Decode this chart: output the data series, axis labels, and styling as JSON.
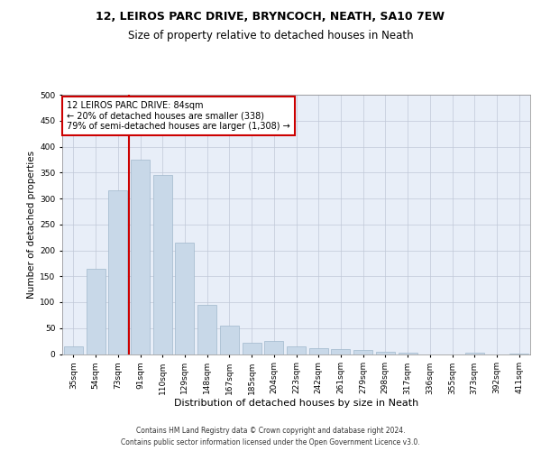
{
  "title": "12, LEIROS PARC DRIVE, BRYNCOCH, NEATH, SA10 7EW",
  "subtitle": "Size of property relative to detached houses in Neath",
  "xlabel": "Distribution of detached houses by size in Neath",
  "ylabel": "Number of detached properties",
  "categories": [
    "35sqm",
    "54sqm",
    "73sqm",
    "91sqm",
    "110sqm",
    "129sqm",
    "148sqm",
    "167sqm",
    "185sqm",
    "204sqm",
    "223sqm",
    "242sqm",
    "261sqm",
    "279sqm",
    "298sqm",
    "317sqm",
    "336sqm",
    "355sqm",
    "373sqm",
    "392sqm",
    "411sqm"
  ],
  "values": [
    15,
    165,
    315,
    375,
    345,
    215,
    95,
    55,
    22,
    25,
    15,
    12,
    10,
    8,
    5,
    2,
    0,
    0,
    2,
    0,
    1
  ],
  "bar_color": "#c8d8e8",
  "bar_edgecolor": "#a0b8cc",
  "vline_color": "#cc0000",
  "annotation_text": "12 LEIROS PARC DRIVE: 84sqm\n← 20% of detached houses are smaller (338)\n79% of semi-detached houses are larger (1,308) →",
  "annotation_box_color": "#cc0000",
  "annotation_fill": "white",
  "ylim": [
    0,
    500
  ],
  "yticks": [
    0,
    50,
    100,
    150,
    200,
    250,
    300,
    350,
    400,
    450,
    500
  ],
  "grid_color": "#c0c8d8",
  "background_color": "#e8eef8",
  "footer_line1": "Contains HM Land Registry data © Crown copyright and database right 2024.",
  "footer_line2": "Contains public sector information licensed under the Open Government Licence v3.0.",
  "title_fontsize": 9,
  "subtitle_fontsize": 8.5,
  "xlabel_fontsize": 8,
  "ylabel_fontsize": 7.5,
  "annotation_fontsize": 7,
  "tick_fontsize": 6.5,
  "footer_fontsize": 5.5
}
